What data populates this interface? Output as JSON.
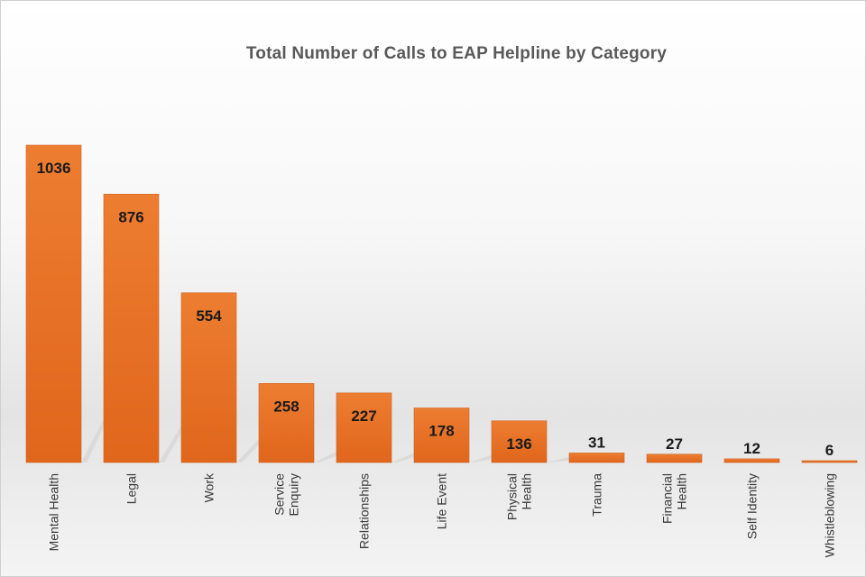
{
  "chart_data": {
    "type": "bar",
    "title": "Total Number of Calls to EAP Helpline by Category",
    "categories": [
      [
        "Mental Health"
      ],
      [
        "Legal"
      ],
      [
        "Work"
      ],
      [
        "Service",
        "Enquiry"
      ],
      [
        "Relationships"
      ],
      [
        "Life Event"
      ],
      [
        "Physical",
        "Health"
      ],
      [
        "Trauma"
      ],
      [
        "Financial",
        "Health"
      ],
      [
        "Self Identity"
      ],
      [
        "Whistleblowing"
      ]
    ],
    "values": [
      1036,
      876,
      554,
      258,
      227,
      178,
      136,
      31,
      27,
      12,
      6
    ],
    "data_labels": [
      "1036",
      "876",
      "554",
      "258",
      "227",
      "178",
      "136",
      "31",
      "27",
      "12",
      "6"
    ],
    "ylim": [
      0,
      1036
    ],
    "grid": false,
    "legend": "none",
    "bar_color": "#E8722A"
  }
}
